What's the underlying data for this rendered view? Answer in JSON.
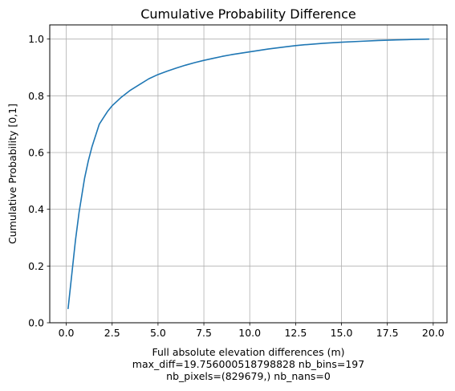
{
  "chart_data": {
    "type": "line",
    "title": "Cumulative Probability Difference",
    "xlabel": "Full absolute elevation differences (m)",
    "xlabel_extra": [
      "max_diff=19.756000518798828 nb_bins=197",
      "nb_pixels=(829679,) nb_nans=0"
    ],
    "ylabel": "Cumulative Probability [0,1]",
    "xlim": [
      -0.9,
      20.75
    ],
    "ylim": [
      0.0,
      1.05
    ],
    "xticks": [
      0.0,
      2.5,
      5.0,
      7.5,
      10.0,
      12.5,
      15.0,
      17.5,
      20.0
    ],
    "xtick_labels": [
      "0.0",
      "2.5",
      "5.0",
      "7.5",
      "10.0",
      "12.5",
      "15.0",
      "17.5",
      "20.0"
    ],
    "yticks": [
      0.0,
      0.2,
      0.4,
      0.6,
      0.8,
      1.0
    ],
    "ytick_labels": [
      "0.0",
      "0.2",
      "0.4",
      "0.6",
      "0.8",
      "1.0"
    ],
    "grid": true,
    "series": [
      {
        "name": "cumulative probability",
        "color": "#1f77b4",
        "x": [
          0.1,
          0.2,
          0.3,
          0.4,
          0.5,
          0.6,
          0.7,
          0.8,
          0.9,
          1.0,
          1.2,
          1.4,
          1.6,
          1.8,
          2.0,
          2.25,
          2.5,
          2.75,
          3.0,
          3.5,
          4.0,
          4.5,
          5.0,
          5.5,
          6.0,
          6.5,
          7.0,
          7.5,
          8.0,
          8.5,
          9.0,
          9.5,
          10.0,
          11.0,
          12.0,
          12.5,
          13.0,
          14.0,
          15.0,
          16.0,
          17.0,
          17.5,
          18.0,
          19.0,
          19.76
        ],
        "y": [
          0.05,
          0.11,
          0.17,
          0.23,
          0.29,
          0.34,
          0.39,
          0.43,
          0.47,
          0.51,
          0.57,
          0.62,
          0.66,
          0.7,
          0.72,
          0.745,
          0.765,
          0.78,
          0.795,
          0.82,
          0.84,
          0.86,
          0.875,
          0.887,
          0.898,
          0.908,
          0.917,
          0.925,
          0.932,
          0.939,
          0.945,
          0.95,
          0.955,
          0.965,
          0.973,
          0.977,
          0.98,
          0.985,
          0.989,
          0.992,
          0.995,
          0.996,
          0.997,
          0.999,
          1.0
        ]
      }
    ]
  }
}
